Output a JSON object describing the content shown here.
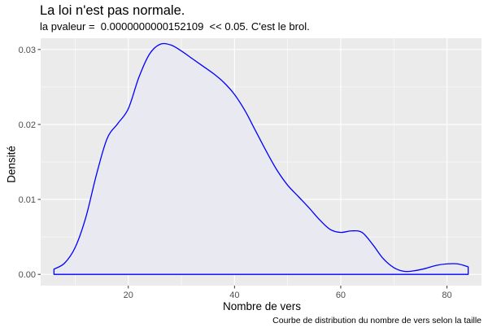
{
  "header": {
    "title": "La loi n'est pas normale.",
    "subtitle": "la pvaleur =  0.0000000000152109  << 0.05. C'est le brol."
  },
  "footer": {
    "caption": "Courbe de distribution du nombre de vers selon la taille"
  },
  "colors": {
    "panel_background": "#ebebeb",
    "grid_major": "#ffffff",
    "curve_outline": "#0000ff",
    "curve_fill": "#e9e9f2",
    "tick_label": "#4d4d4d"
  },
  "chart_data": {
    "type": "area",
    "title": "La loi n'est pas normale.",
    "subtitle": "la pvaleur =  0.0000000000152109  << 0.05. C'est le brol.",
    "caption": "Courbe de distribution du nombre de vers selon la taille",
    "xlabel": "Nombre de vers",
    "ylabel": "Densité",
    "xlim": [
      3.5,
      86.5
    ],
    "ylim": [
      -0.0015,
      0.0315
    ],
    "x_ticks": [
      20,
      40,
      60,
      80
    ],
    "x_tick_labels": [
      "20",
      "40",
      "60",
      "80"
    ],
    "y_ticks": [
      0.0,
      0.01,
      0.02,
      0.03
    ],
    "y_tick_labels": [
      "0.00",
      "0.01",
      "0.02",
      "0.03"
    ],
    "grid": true,
    "legend": "none",
    "series": [
      {
        "x": [
          6,
          8,
          10,
          12,
          14,
          16,
          18,
          20,
          22,
          24,
          26,
          28,
          30,
          32,
          34,
          36,
          38,
          40,
          42,
          44,
          46,
          48,
          50,
          52,
          54,
          56,
          58,
          60,
          62,
          64,
          66,
          68,
          70,
          72,
          74,
          76,
          78,
          80,
          82,
          84
        ],
        "y": [
          0.0007,
          0.0015,
          0.0036,
          0.0076,
          0.0133,
          0.0181,
          0.0201,
          0.0221,
          0.0263,
          0.0294,
          0.0307,
          0.0306,
          0.0298,
          0.0288,
          0.0278,
          0.0268,
          0.0256,
          0.024,
          0.0218,
          0.0191,
          0.0164,
          0.0139,
          0.0119,
          0.0104,
          0.0089,
          0.0073,
          0.006,
          0.0056,
          0.0058,
          0.0056,
          0.004,
          0.0021,
          0.0009,
          0.0004,
          0.0005,
          0.0008,
          0.0012,
          0.0014,
          0.0014,
          0.001
        ]
      }
    ]
  }
}
